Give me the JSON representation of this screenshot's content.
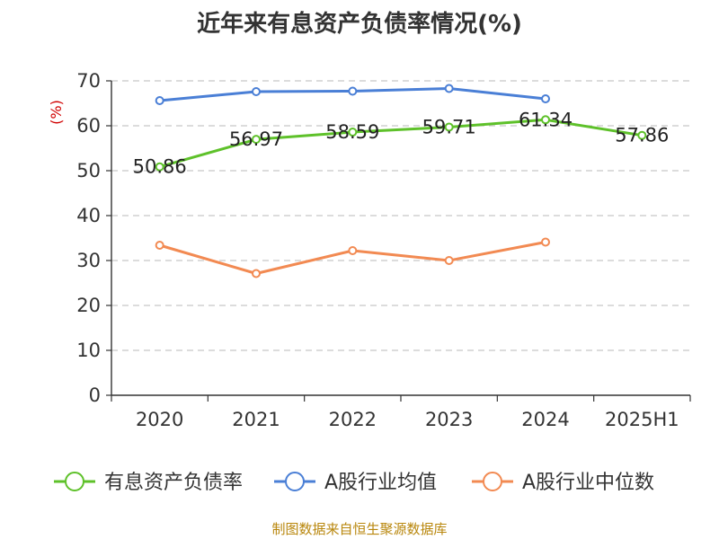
{
  "chart_data": {
    "type": "line",
    "title": "近年来有息资产负债率情况(%)",
    "ylabel": "(%)",
    "categories": [
      "2020",
      "2021",
      "2022",
      "2023",
      "2024",
      "2025H1"
    ],
    "ylim": [
      0,
      70
    ],
    "yticks": [
      0,
      10,
      20,
      30,
      40,
      50,
      60,
      70
    ],
    "grid": true,
    "legend_position": "bottom",
    "series": [
      {
        "name": "有息资产负债率",
        "color": "#5ec12a",
        "values": [
          50.86,
          56.97,
          58.59,
          59.71,
          61.34,
          57.86
        ],
        "labels": [
          "50.86",
          "56.97",
          "58.59",
          "59.71",
          "61.34",
          "57.86"
        ]
      },
      {
        "name": "A股行业均值",
        "color": "#4a7fd6",
        "values": [
          65.6,
          67.6,
          67.7,
          68.3,
          66.0,
          null
        ]
      },
      {
        "name": "A股行业中位数",
        "color": "#f28a52",
        "values": [
          33.4,
          27.1,
          32.2,
          30.0,
          34.1,
          null
        ]
      }
    ]
  },
  "source": "制图数据来自恒生聚源数据库"
}
